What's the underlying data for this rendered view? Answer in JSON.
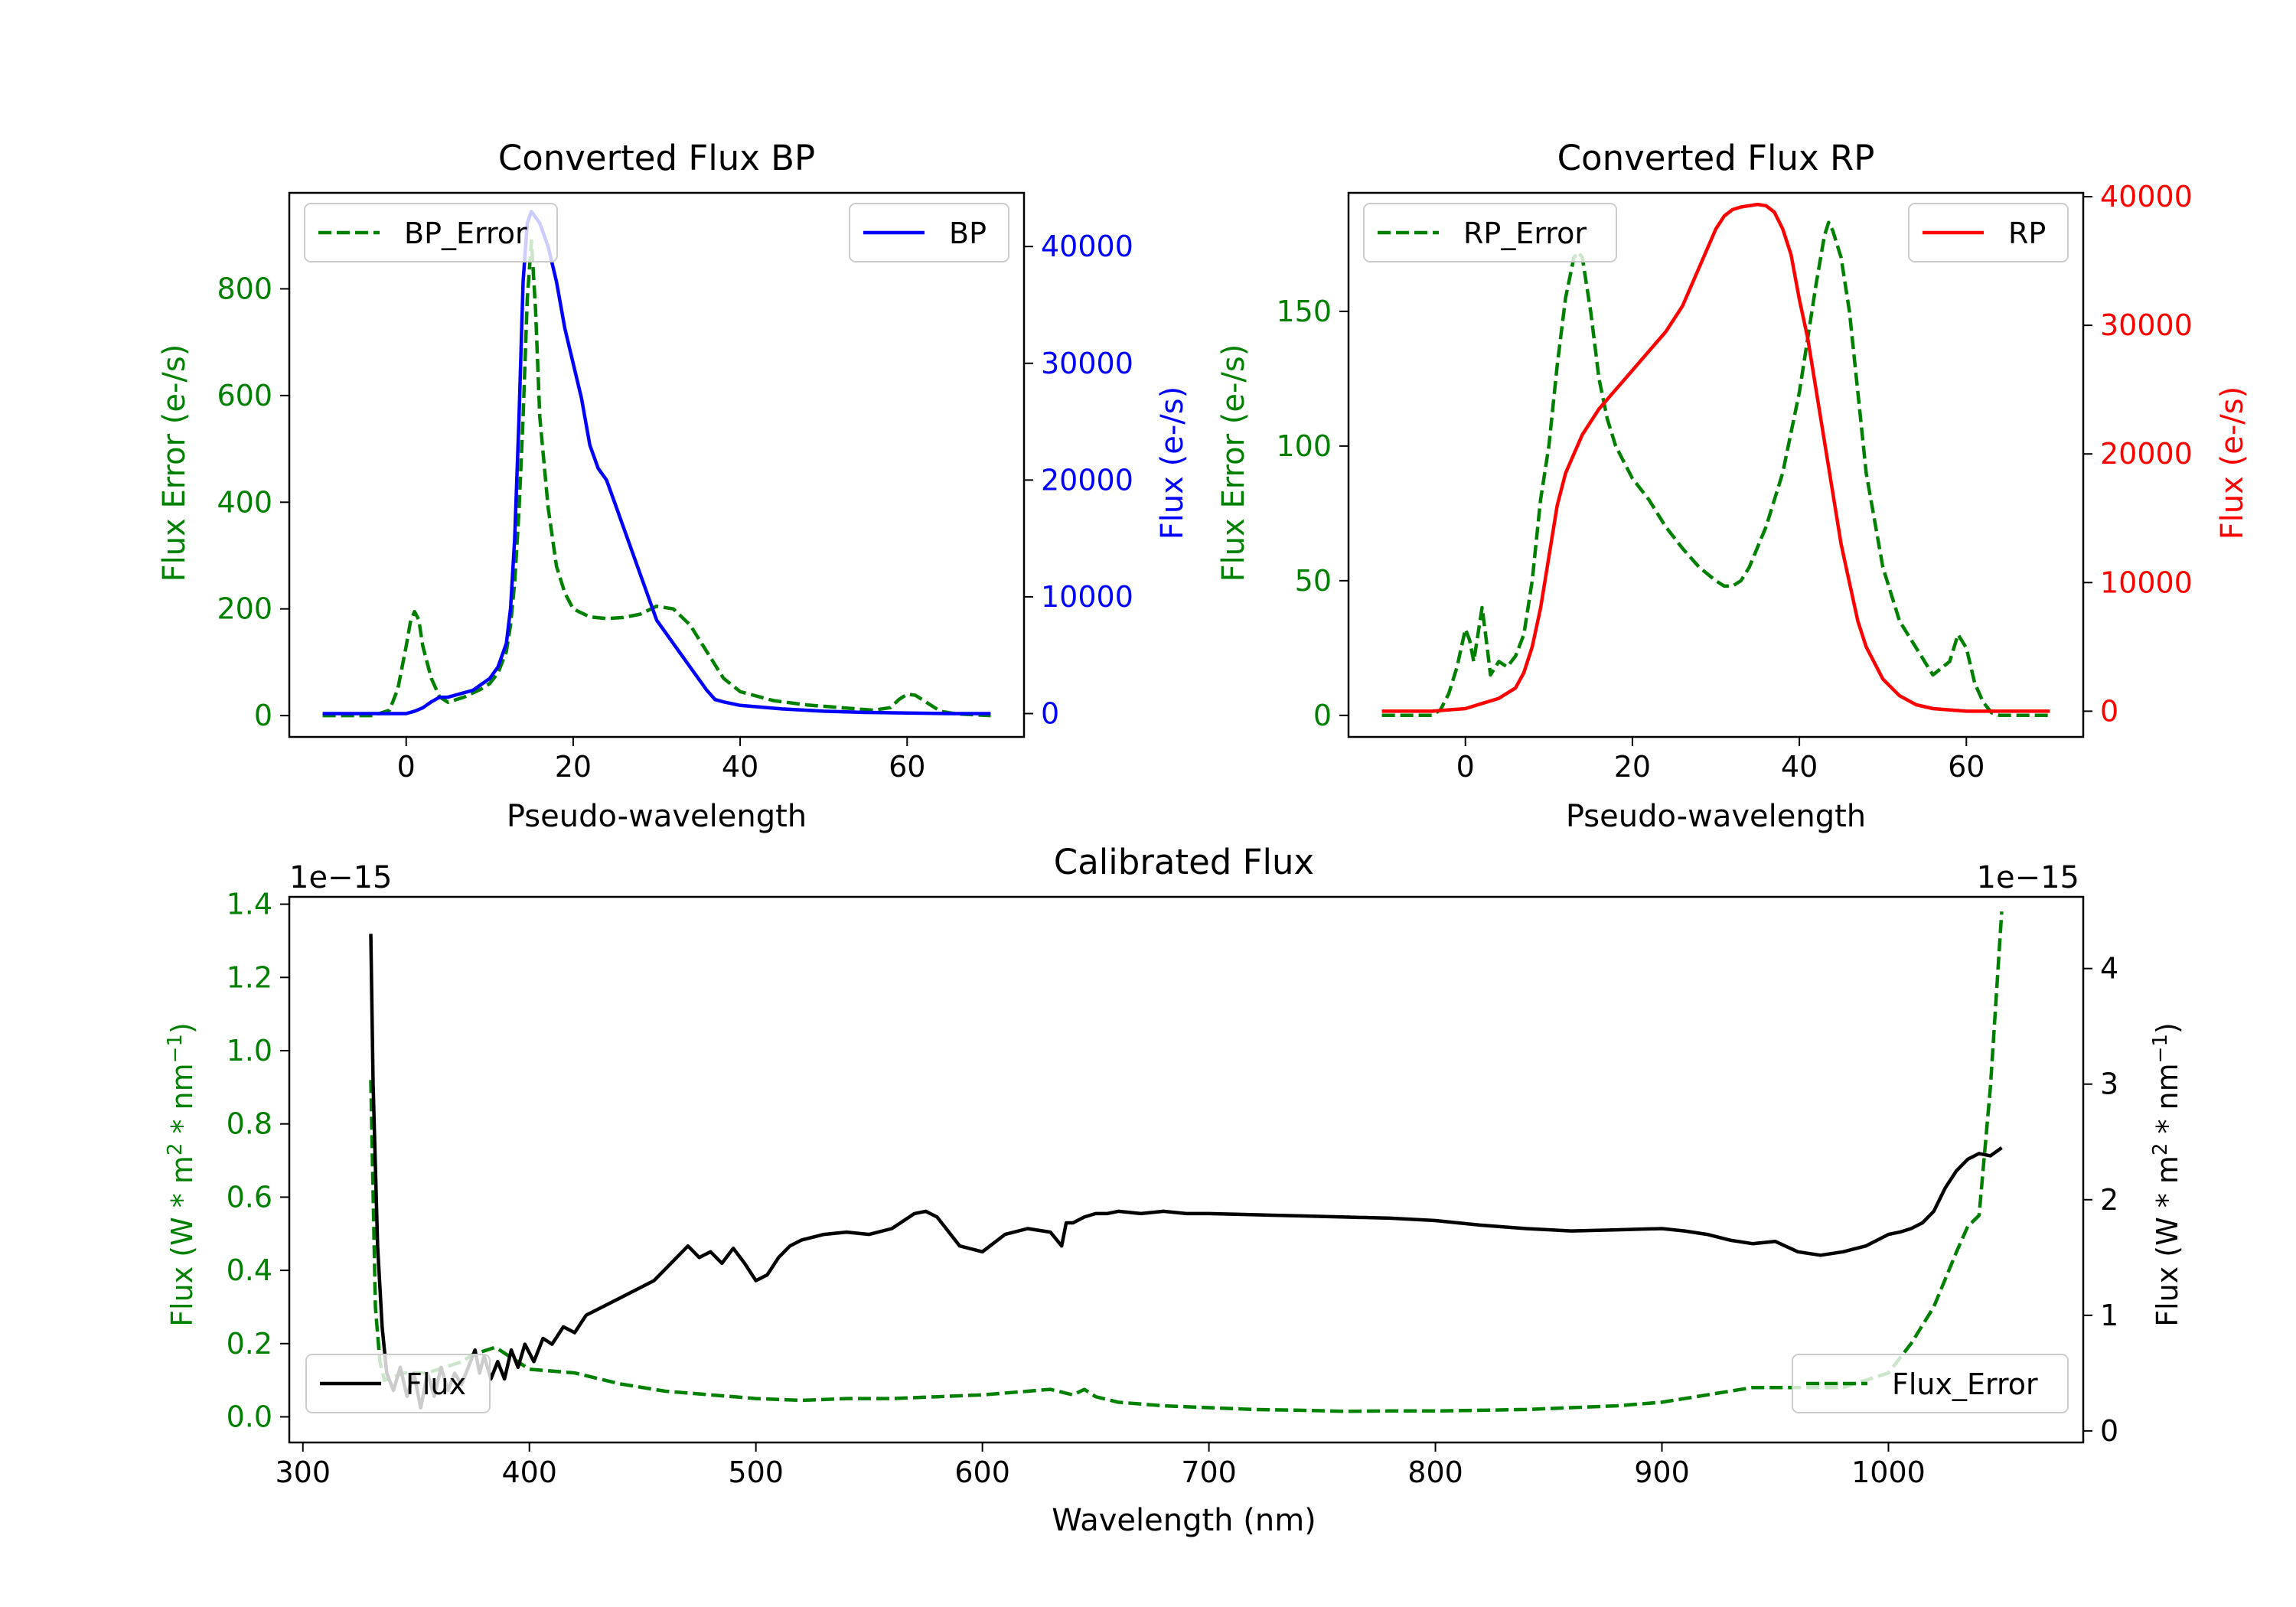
{
  "colors": {
    "bp": "#0000ff",
    "rp": "#ff0000",
    "error": "#008000",
    "flux": "#000000",
    "axis": "#000000"
  },
  "chart_data": [
    {
      "id": "bp",
      "type": "line",
      "title": "Converted Flux BP",
      "xlabel": "Pseudo-wavelength",
      "ylabel_left": "Flux Error (e-/s)",
      "ylabel_right": "Flux (e-/s)",
      "xlim": [
        -14,
        74
      ],
      "ylim_left": [
        -40,
        980
      ],
      "ylim_right": [
        -2000,
        44600
      ],
      "xticks": [
        0,
        20,
        40,
        60
      ],
      "yticks_left": [
        0,
        200,
        400,
        600,
        800
      ],
      "yticks_right": [
        0,
        10000,
        20000,
        30000,
        40000
      ],
      "legend_left": "BP_Error",
      "legend_right": "BP",
      "series": [
        {
          "name": "BP_Error",
          "axis": "left",
          "style": "dashed",
          "x": [
            -10,
            -4,
            -2,
            -1,
            0,
            0.5,
            1,
            1.5,
            2,
            3,
            4,
            5,
            7,
            9,
            10,
            11,
            12,
            12.5,
            13,
            13.5,
            14,
            14.5,
            15,
            15.5,
            16,
            17,
            18,
            19,
            20,
            22,
            24,
            26,
            28,
            30,
            32,
            34,
            36,
            38,
            40,
            44,
            48,
            52,
            56,
            58,
            59,
            60,
            61,
            62,
            63,
            64,
            66,
            70
          ],
          "y": [
            0,
            0,
            10,
            50,
            130,
            175,
            195,
            180,
            130,
            70,
            35,
            25,
            35,
            50,
            60,
            80,
            120,
            170,
            250,
            380,
            560,
            780,
            890,
            760,
            560,
            390,
            280,
            230,
            200,
            185,
            182,
            184,
            190,
            205,
            200,
            170,
            120,
            70,
            45,
            28,
            20,
            15,
            10,
            15,
            30,
            40,
            38,
            28,
            18,
            8,
            3,
            0
          ]
        },
        {
          "name": "BP",
          "axis": "right",
          "style": "solid",
          "x": [
            -10,
            -3,
            0,
            1,
            2,
            3,
            4,
            5,
            6,
            8,
            10,
            11,
            12,
            12.5,
            13,
            13.5,
            14,
            14.5,
            15,
            15.5,
            16,
            16.5,
            17,
            18,
            19,
            20,
            21,
            22,
            23,
            24,
            25,
            26,
            27,
            28,
            29,
            30,
            32,
            34,
            36,
            37,
            38,
            40,
            45,
            50,
            55,
            60,
            65,
            70
          ],
          "y": [
            0,
            0,
            0,
            200,
            500,
            1000,
            1400,
            1400,
            1600,
            2000,
            3000,
            4000,
            6000,
            9000,
            15000,
            25000,
            37000,
            42000,
            43000,
            42500,
            42000,
            41000,
            40000,
            37000,
            33000,
            30000,
            27000,
            23000,
            21000,
            20000,
            18000,
            16000,
            14000,
            12000,
            10000,
            8000,
            6000,
            4000,
            2000,
            1200,
            1000,
            700,
            400,
            200,
            100,
            50,
            0,
            0
          ]
        }
      ]
    },
    {
      "id": "rp",
      "type": "line",
      "title": "Converted Flux RP",
      "xlabel": "Pseudo-wavelength",
      "ylabel_left": "Flux Error (e-/s)",
      "ylabel_right": "Flux (e-/s)",
      "xlim": [
        -14,
        74
      ],
      "ylim_left": [
        -8,
        194
      ],
      "ylim_right": [
        -2000,
        40300
      ],
      "xticks": [
        0,
        20,
        40,
        60
      ],
      "yticks_left": [
        0,
        50,
        100,
        150
      ],
      "yticks_right": [
        0,
        10000,
        20000,
        30000,
        40000
      ],
      "legend_left": "RP_Error",
      "legend_right": "RP",
      "series": [
        {
          "name": "RP_Error",
          "axis": "left",
          "style": "dashed",
          "x": [
            -10,
            -4,
            -3,
            -2,
            -1,
            0,
            0.5,
            1,
            1.5,
            2,
            2.5,
            3,
            4,
            5,
            6,
            7,
            8,
            9,
            10,
            11,
            12,
            13,
            13.5,
            14,
            15,
            16,
            17,
            18,
            20,
            22,
            24,
            26,
            28,
            30,
            31,
            32,
            33,
            34,
            36,
            38,
            40,
            41,
            42,
            43,
            43.5,
            44,
            45,
            46,
            47,
            48,
            50,
            52,
            54,
            56,
            58,
            59,
            60,
            61,
            62,
            63,
            64,
            66,
            70
          ],
          "y": [
            0,
            0,
            2,
            8,
            18,
            32,
            28,
            20,
            30,
            40,
            28,
            15,
            20,
            18,
            22,
            30,
            50,
            80,
            100,
            130,
            155,
            170,
            172,
            170,
            150,
            125,
            110,
            100,
            88,
            80,
            70,
            62,
            55,
            50,
            48,
            48,
            50,
            55,
            70,
            90,
            120,
            140,
            160,
            178,
            183,
            180,
            170,
            150,
            120,
            90,
            55,
            35,
            25,
            15,
            20,
            30,
            25,
            12,
            5,
            1,
            0,
            0,
            0
          ]
        },
        {
          "name": "RP",
          "axis": "right",
          "style": "solid",
          "x": [
            -10,
            -4,
            0,
            2,
            4,
            6,
            7,
            8,
            9,
            10,
            11,
            12,
            13,
            14,
            16,
            18,
            20,
            22,
            24,
            26,
            27,
            28,
            29,
            30,
            31,
            32,
            33,
            34,
            35,
            36,
            37,
            38,
            39,
            40,
            41,
            42,
            43,
            44,
            45,
            46,
            47,
            48,
            50,
            52,
            54,
            56,
            60,
            65,
            70
          ],
          "y": [
            0,
            0,
            200,
            600,
            1000,
            1800,
            3000,
            5000,
            8000,
            12000,
            16000,
            18500,
            20000,
            21500,
            23500,
            25000,
            26500,
            28000,
            29500,
            31500,
            33000,
            34500,
            36000,
            37500,
            38500,
            39000,
            39200,
            39300,
            39400,
            39300,
            38800,
            37500,
            35500,
            32000,
            29000,
            25000,
            21000,
            17000,
            13000,
            10000,
            7000,
            5000,
            2500,
            1200,
            500,
            200,
            0,
            0,
            0
          ]
        }
      ]
    },
    {
      "id": "calibrated",
      "type": "line",
      "title": "Calibrated Flux",
      "xlabel": "Wavelength (nm)",
      "ylabel_left": "Flux (W * m$^2$ * nm$^{-1}$)",
      "ylabel_right": "Flux (W * m$^2$ * nm$^{-1}$)",
      "ylabel_text": "Flux (W * m",
      "ylabel_sup1": "2",
      "ylabel_mid": " * nm",
      "ylabel_sup2": "−1",
      "ylabel_end": ")",
      "offset_left": "1e−15",
      "offset_right": "1e−15",
      "xlim": [
        294,
        1086
      ],
      "ylim_left": [
        -0.07,
        1.42
      ],
      "ylim_right": [
        -0.1,
        4.62
      ],
      "xticks": [
        300,
        400,
        500,
        600,
        700,
        800,
        900,
        1000
      ],
      "yticks_left": [
        0.0,
        0.2,
        0.4,
        0.6,
        0.8,
        1.0,
        1.2,
        1.4
      ],
      "yticks_left_labels": [
        "0.0",
        "0.2",
        "0.4",
        "0.6",
        "0.8",
        "1.0",
        "1.2",
        "1.4"
      ],
      "yticks_right": [
        0,
        1,
        2,
        3,
        4
      ],
      "legend_left": "Flux",
      "legend_right": "Flux_Error",
      "series": [
        {
          "name": "Flux_Error",
          "axis": "left",
          "style": "dashed",
          "x": [
            330,
            332,
            334,
            336,
            340,
            345,
            350,
            355,
            360,
            365,
            370,
            375,
            380,
            385,
            390,
            395,
            400,
            420,
            440,
            460,
            480,
            500,
            520,
            540,
            560,
            580,
            600,
            620,
            630,
            640,
            645,
            650,
            660,
            680,
            700,
            720,
            740,
            760,
            780,
            800,
            820,
            840,
            860,
            880,
            900,
            920,
            940,
            960,
            980,
            1000,
            1010,
            1020,
            1030,
            1035,
            1040,
            1045,
            1050
          ],
          "y": [
            0.92,
            0.3,
            0.15,
            0.1,
            0.11,
            0.12,
            0.12,
            0.12,
            0.13,
            0.14,
            0.15,
            0.17,
            0.18,
            0.19,
            0.17,
            0.15,
            0.13,
            0.12,
            0.09,
            0.07,
            0.06,
            0.05,
            0.045,
            0.05,
            0.05,
            0.055,
            0.06,
            0.07,
            0.075,
            0.06,
            0.075,
            0.055,
            0.04,
            0.03,
            0.025,
            0.02,
            0.018,
            0.015,
            0.016,
            0.016,
            0.018,
            0.02,
            0.025,
            0.03,
            0.04,
            0.06,
            0.08,
            0.08,
            0.08,
            0.12,
            0.2,
            0.3,
            0.45,
            0.52,
            0.55,
            0.9,
            1.38
          ]
        },
        {
          "name": "Flux",
          "axis": "right",
          "style": "solid",
          "x": [
            330,
            331,
            333,
            335,
            337,
            340,
            343,
            346,
            349,
            352,
            355,
            358,
            361,
            364,
            367,
            370,
            373,
            376,
            378,
            380,
            383,
            386,
            389,
            392,
            395,
            398,
            402,
            406,
            410,
            415,
            420,
            425,
            430,
            435,
            440,
            445,
            450,
            455,
            460,
            465,
            470,
            475,
            480,
            485,
            490,
            495,
            500,
            505,
            510,
            515,
            520,
            530,
            540,
            550,
            560,
            570,
            575,
            580,
            590,
            600,
            610,
            620,
            630,
            635,
            637,
            640,
            645,
            650,
            655,
            660,
            670,
            680,
            690,
            700,
            720,
            740,
            760,
            780,
            800,
            820,
            840,
            860,
            880,
            900,
            910,
            920,
            930,
            940,
            950,
            960,
            970,
            980,
            990,
            1000,
            1005,
            1010,
            1015,
            1020,
            1025,
            1030,
            1035,
            1040,
            1045,
            1050
          ],
          "y": [
            4.3,
            3.0,
            1.6,
            0.9,
            0.5,
            0.35,
            0.55,
            0.3,
            0.5,
            0.2,
            0.5,
            0.3,
            0.55,
            0.35,
            0.5,
            0.4,
            0.55,
            0.7,
            0.5,
            0.65,
            0.45,
            0.6,
            0.45,
            0.7,
            0.55,
            0.75,
            0.6,
            0.8,
            0.75,
            0.9,
            0.85,
            1.0,
            1.05,
            1.1,
            1.15,
            1.2,
            1.25,
            1.3,
            1.4,
            1.5,
            1.6,
            1.5,
            1.55,
            1.45,
            1.58,
            1.45,
            1.3,
            1.35,
            1.5,
            1.6,
            1.65,
            1.7,
            1.72,
            1.7,
            1.75,
            1.88,
            1.9,
            1.85,
            1.6,
            1.55,
            1.7,
            1.75,
            1.72,
            1.6,
            1.8,
            1.8,
            1.85,
            1.88,
            1.88,
            1.9,
            1.88,
            1.9,
            1.88,
            1.88,
            1.87,
            1.86,
            1.85,
            1.84,
            1.82,
            1.78,
            1.75,
            1.73,
            1.74,
            1.75,
            1.73,
            1.7,
            1.65,
            1.62,
            1.64,
            1.55,
            1.52,
            1.55,
            1.6,
            1.7,
            1.72,
            1.75,
            1.8,
            1.9,
            2.1,
            2.25,
            2.35,
            2.4,
            2.38,
            2.45
          ]
        }
      ]
    }
  ]
}
